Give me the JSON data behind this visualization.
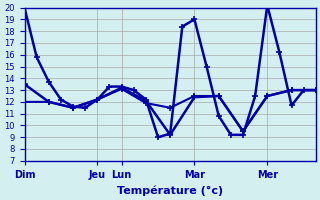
{
  "title": "Température (°c)",
  "background_color": "#d4efef",
  "grid_color": "#aaaaaa",
  "line_color": "#0000aa",
  "xlim": [
    0,
    24
  ],
  "ylim": [
    7,
    20
  ],
  "yticks": [
    7,
    8,
    9,
    10,
    11,
    12,
    13,
    14,
    15,
    16,
    17,
    18,
    19,
    20
  ],
  "xtick_positions": [
    0,
    6,
    8,
    14,
    20
  ],
  "xtick_labels": [
    "Dim",
    "Jeu",
    "Lun",
    "Mar",
    "Mer"
  ],
  "series": [
    {
      "x": [
        0,
        1,
        2,
        3,
        4,
        5,
        6,
        7,
        8,
        9,
        10,
        11,
        12,
        13,
        14,
        15,
        16,
        17,
        18,
        19,
        20,
        21,
        22,
        23,
        24
      ],
      "y": [
        20,
        15.8,
        13.7,
        12.2,
        11.6,
        11.5,
        12.2,
        13.3,
        13.3,
        13.0,
        12.2,
        9.0,
        9.3,
        18.4,
        19.0,
        15.0,
        10.8,
        9.2,
        9.2,
        12.5,
        20.2,
        16.2,
        11.7,
        13.0,
        13.0
      ],
      "lw": 1.8
    },
    {
      "x": [
        0,
        2,
        4,
        6,
        8,
        10,
        12,
        14,
        16,
        18,
        20,
        22,
        24
      ],
      "y": [
        13.5,
        12.0,
        11.5,
        12.2,
        13.2,
        12.1,
        9.2,
        12.4,
        12.5,
        9.5,
        12.5,
        13.0,
        13.0
      ],
      "lw": 1.8
    },
    {
      "x": [
        0,
        2,
        4,
        6,
        8,
        10,
        12,
        14,
        16,
        18,
        20,
        22,
        24
      ],
      "y": [
        12.0,
        12.0,
        11.5,
        12.2,
        13.1,
        11.9,
        11.5,
        12.5,
        12.5,
        9.5,
        12.5,
        13.0,
        13.0
      ],
      "lw": 1.5
    }
  ]
}
